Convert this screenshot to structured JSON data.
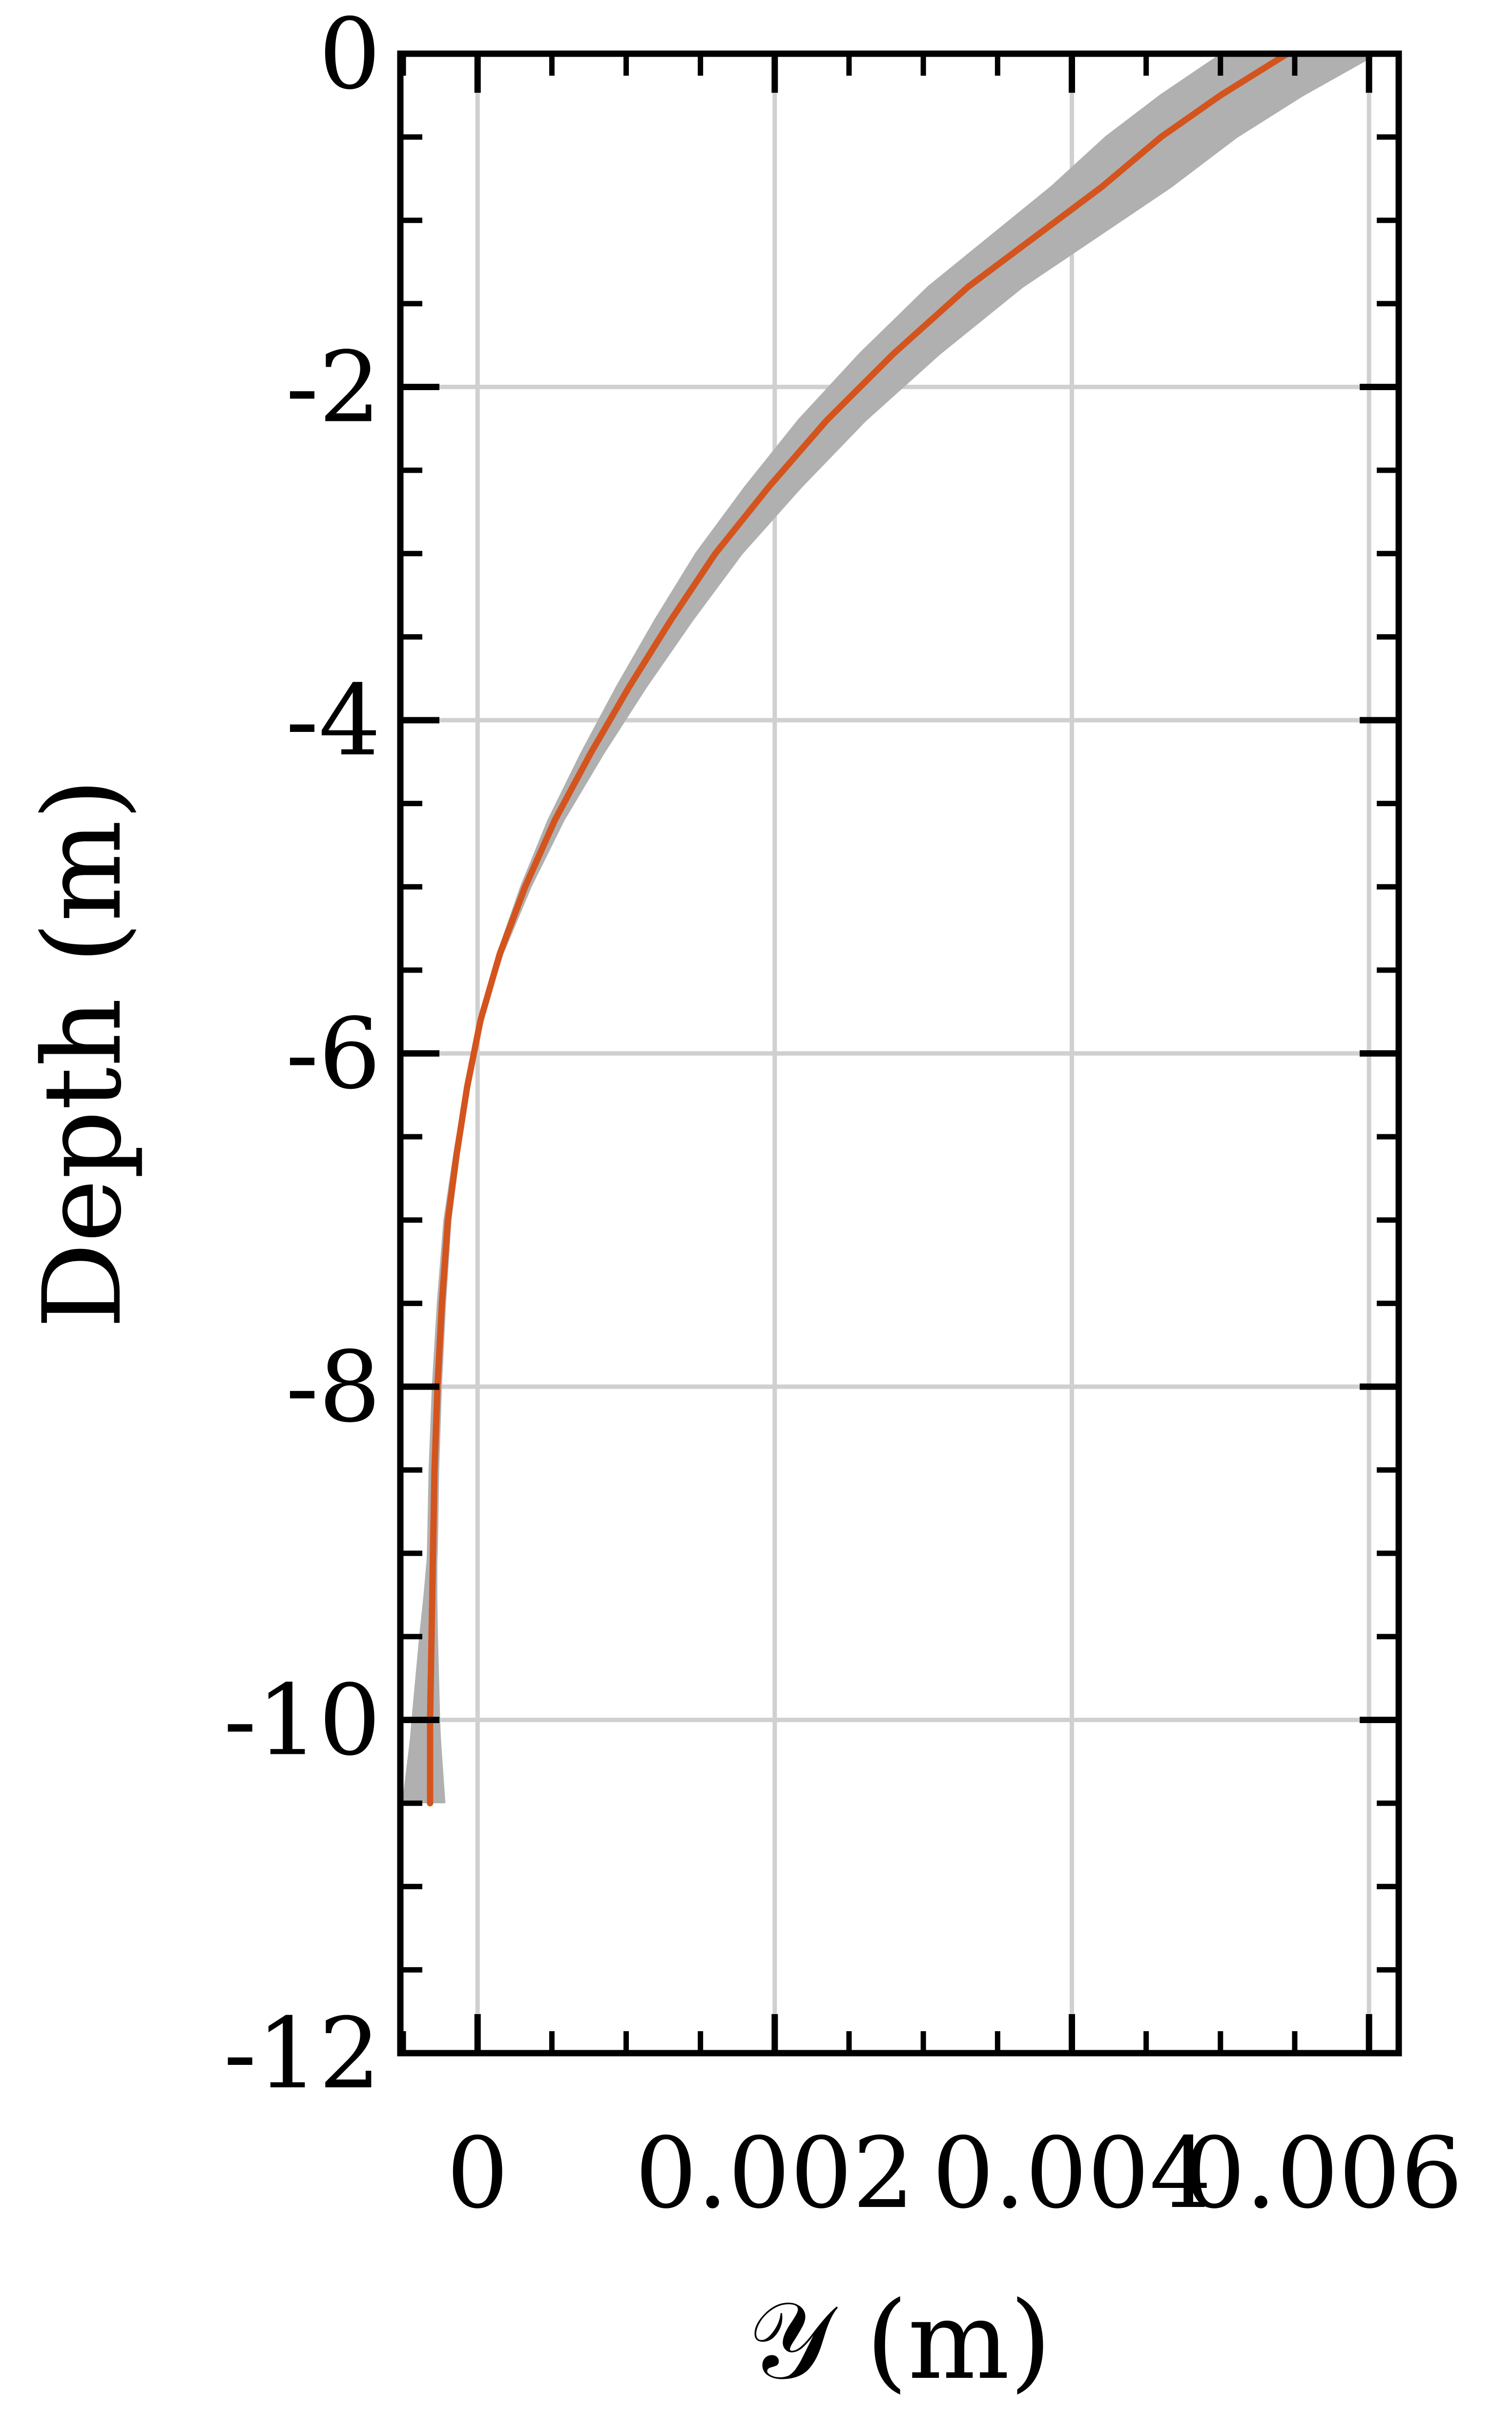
{
  "chart_data": {
    "type": "line",
    "title": "",
    "xlabel": "𝒴 (m)",
    "ylabel": "Depth (m)",
    "xlim": [
      -0.00052,
      0.0062
    ],
    "ylim": [
      -12,
      0
    ],
    "x_ticks": [
      0,
      0.002,
      0.004,
      0.006
    ],
    "x_tick_labels": [
      "0",
      "0.002",
      "0.004",
      "0.006"
    ],
    "y_ticks": [
      0,
      -2,
      -4,
      -6,
      -8,
      -10,
      -12
    ],
    "y_tick_labels": [
      "0",
      "-2",
      "-4",
      "-6",
      "-8",
      "-10",
      "-12"
    ],
    "grid": true,
    "colors": {
      "mean": "#d4541e",
      "ensemble": "#b0b0b0",
      "grid": "#d0d0d0",
      "axes": "#000000"
    },
    "series": [
      {
        "role": "mean",
        "points": [
          [
            0.00545,
            0
          ],
          [
            0.005,
            -0.25
          ],
          [
            0.0046,
            -0.5
          ],
          [
            0.0042,
            -0.8
          ],
          [
            0.0039,
            -1.0
          ],
          [
            0.0033,
            -1.4
          ],
          [
            0.0028,
            -1.8
          ],
          [
            0.00235,
            -2.2
          ],
          [
            0.00196,
            -2.6
          ],
          [
            0.0016,
            -3.0
          ],
          [
            0.0013,
            -3.4
          ],
          [
            0.00102,
            -3.8
          ],
          [
            0.00076,
            -4.2
          ],
          [
            0.00052,
            -4.6
          ],
          [
            0.00032,
            -5.0
          ],
          [
            0.00015,
            -5.4
          ],
          [
            2e-05,
            -5.8
          ],
          [
            -7e-05,
            -6.2
          ],
          [
            -0.00014,
            -6.6
          ],
          [
            -0.0002,
            -7.0
          ],
          [
            -0.00024,
            -7.5
          ],
          [
            -0.00027,
            -8.0
          ],
          [
            -0.00029,
            -8.5
          ],
          [
            -0.0003,
            -9.0
          ],
          [
            -0.00031,
            -9.5
          ],
          [
            -0.00032,
            -10.0
          ],
          [
            -0.00032,
            -10.5
          ]
        ]
      }
    ],
    "ensemble": {
      "count": 60,
      "scale_range": [
        0.92,
        1.11
      ],
      "bottom_range": [
        -0.0005,
        -0.00022
      ]
    }
  }
}
